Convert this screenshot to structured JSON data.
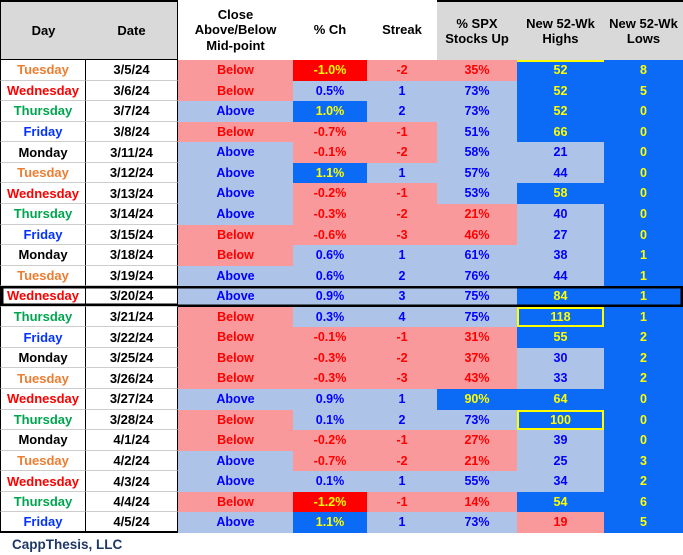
{
  "colors": {
    "header_gray": "#D9D9D9",
    "accent_pink": "#F9999B",
    "accent_light_blue": "#AEC3E8",
    "accent_bright_blue": "#0B6BF7",
    "accent_red": "#FE0000",
    "accent_yellow": "#FFFF00",
    "text_blue": "#0000FF",
    "text_red": "#FE0000",
    "day_monday": "#000000",
    "day_tuesday": "#ED7D31",
    "day_wednesday": "#FE0000",
    "day_thursday": "#00A550",
    "day_friday": "#0432FF",
    "footer_navy": "#1F3864"
  },
  "table": {
    "columns": [
      "Day",
      "Date",
      "Close\nAbove/Below\nMid-point",
      "% Ch",
      "Streak",
      "% SPX\nStocks Up",
      "New 52-Wk\nHighs",
      "New 52-Wk\nLows"
    ],
    "rows": [
      {
        "day": "Tuesday",
        "date": "3/5/24",
        "close": "Below",
        "close_s": "neg",
        "pct": "-1.0%",
        "pct_s": "hotneg",
        "streak": "-2",
        "streak_s": "neg",
        "spx": "35%",
        "spx_s": "neg",
        "highs": "52",
        "highs_s": "hotpos",
        "highs_mark": "topline",
        "lows": "8",
        "lows_s": "hotpos",
        "boxed": false
      },
      {
        "day": "Wednesday",
        "date": "3/6/24",
        "close": "Below",
        "close_s": "neg",
        "pct": "0.5%",
        "pct_s": "pos",
        "streak": "1",
        "streak_s": "pos",
        "spx": "73%",
        "spx_s": "pos",
        "highs": "52",
        "highs_s": "hotpos",
        "highs_mark": null,
        "lows": "5",
        "lows_s": "hotpos",
        "boxed": false
      },
      {
        "day": "Thursday",
        "date": "3/7/24",
        "close": "Above",
        "close_s": "pos",
        "pct": "1.0%",
        "pct_s": "hotpos",
        "streak": "2",
        "streak_s": "pos",
        "spx": "73%",
        "spx_s": "pos",
        "highs": "52",
        "highs_s": "hotpos",
        "highs_mark": null,
        "lows": "0",
        "lows_s": "hotpos",
        "boxed": false
      },
      {
        "day": "Friday",
        "date": "3/8/24",
        "close": "Below",
        "close_s": "neg",
        "pct": "-0.7%",
        "pct_s": "neg",
        "streak": "-1",
        "streak_s": "neg",
        "spx": "51%",
        "spx_s": "pos",
        "highs": "66",
        "highs_s": "hotpos",
        "highs_mark": null,
        "lows": "0",
        "lows_s": "hotpos",
        "boxed": false
      },
      {
        "day": "Monday",
        "date": "3/11/24",
        "close": "Above",
        "close_s": "pos",
        "pct": "-0.1%",
        "pct_s": "neg",
        "streak": "-2",
        "streak_s": "neg",
        "spx": "58%",
        "spx_s": "pos",
        "highs": "21",
        "highs_s": "pos",
        "highs_mark": null,
        "lows": "0",
        "lows_s": "hotpos",
        "boxed": false
      },
      {
        "day": "Tuesday",
        "date": "3/12/24",
        "close": "Above",
        "close_s": "pos",
        "pct": "1.1%",
        "pct_s": "hotpos",
        "streak": "1",
        "streak_s": "pos",
        "spx": "57%",
        "spx_s": "pos",
        "highs": "44",
        "highs_s": "pos",
        "highs_mark": null,
        "lows": "0",
        "lows_s": "hotpos",
        "boxed": false
      },
      {
        "day": "Wednesday",
        "date": "3/13/24",
        "close": "Above",
        "close_s": "pos",
        "pct": "-0.2%",
        "pct_s": "neg",
        "streak": "-1",
        "streak_s": "neg",
        "spx": "53%",
        "spx_s": "pos",
        "highs": "58",
        "highs_s": "hotpos",
        "highs_mark": null,
        "lows": "0",
        "lows_s": "hotpos",
        "boxed": false
      },
      {
        "day": "Thursday",
        "date": "3/14/24",
        "close": "Above",
        "close_s": "pos",
        "pct": "-0.3%",
        "pct_s": "neg",
        "streak": "-2",
        "streak_s": "neg",
        "spx": "21%",
        "spx_s": "neg",
        "highs": "40",
        "highs_s": "pos",
        "highs_mark": null,
        "lows": "0",
        "lows_s": "hotpos",
        "boxed": false
      },
      {
        "day": "Friday",
        "date": "3/15/24",
        "close": "Below",
        "close_s": "neg",
        "pct": "-0.6%",
        "pct_s": "neg",
        "streak": "-3",
        "streak_s": "neg",
        "spx": "46%",
        "spx_s": "neg",
        "highs": "27",
        "highs_s": "pos",
        "highs_mark": null,
        "lows": "0",
        "lows_s": "hotpos",
        "boxed": false
      },
      {
        "day": "Monday",
        "date": "3/18/24",
        "close": "Below",
        "close_s": "neg",
        "pct": "0.6%",
        "pct_s": "pos",
        "streak": "1",
        "streak_s": "pos",
        "spx": "61%",
        "spx_s": "pos",
        "highs": "38",
        "highs_s": "pos",
        "highs_mark": null,
        "lows": "1",
        "lows_s": "hotpos",
        "boxed": false
      },
      {
        "day": "Tuesday",
        "date": "3/19/24",
        "close": "Above",
        "close_s": "pos",
        "pct": "0.6%",
        "pct_s": "pos",
        "streak": "2",
        "streak_s": "pos",
        "spx": "76%",
        "spx_s": "pos",
        "highs": "44",
        "highs_s": "pos",
        "highs_mark": null,
        "lows": "1",
        "lows_s": "hotpos",
        "boxed": false
      },
      {
        "day": "Wednesday",
        "date": "3/20/24",
        "close": "Above",
        "close_s": "pos",
        "pct": "0.9%",
        "pct_s": "pos",
        "streak": "3",
        "streak_s": "pos",
        "spx": "75%",
        "spx_s": "pos",
        "highs": "84",
        "highs_s": "hotpos",
        "highs_mark": null,
        "lows": "1",
        "lows_s": "hotpos",
        "boxed": true
      },
      {
        "day": "Thursday",
        "date": "3/21/24",
        "close": "Below",
        "close_s": "neg",
        "pct": "0.3%",
        "pct_s": "pos",
        "streak": "4",
        "streak_s": "pos",
        "spx": "75%",
        "spx_s": "pos",
        "highs": "118",
        "highs_s": "hotpos",
        "highs_mark": "yellowbox",
        "lows": "1",
        "lows_s": "hotpos",
        "boxed": false
      },
      {
        "day": "Friday",
        "date": "3/22/24",
        "close": "Below",
        "close_s": "neg",
        "pct": "-0.1%",
        "pct_s": "neg",
        "streak": "-1",
        "streak_s": "neg",
        "spx": "31%",
        "spx_s": "neg",
        "highs": "55",
        "highs_s": "hotpos",
        "highs_mark": null,
        "lows": "2",
        "lows_s": "hotpos",
        "boxed": false
      },
      {
        "day": "Monday",
        "date": "3/25/24",
        "close": "Below",
        "close_s": "neg",
        "pct": "-0.3%",
        "pct_s": "neg",
        "streak": "-2",
        "streak_s": "neg",
        "spx": "37%",
        "spx_s": "neg",
        "highs": "30",
        "highs_s": "pos",
        "highs_mark": null,
        "lows": "2",
        "lows_s": "hotpos",
        "boxed": false
      },
      {
        "day": "Tuesday",
        "date": "3/26/24",
        "close": "Below",
        "close_s": "neg",
        "pct": "-0.3%",
        "pct_s": "neg",
        "streak": "-3",
        "streak_s": "neg",
        "spx": "43%",
        "spx_s": "neg",
        "highs": "33",
        "highs_s": "pos",
        "highs_mark": null,
        "lows": "2",
        "lows_s": "hotpos",
        "boxed": false
      },
      {
        "day": "Wednesday",
        "date": "3/27/24",
        "close": "Above",
        "close_s": "pos",
        "pct": "0.9%",
        "pct_s": "pos",
        "streak": "1",
        "streak_s": "pos",
        "spx": "90%",
        "spx_s": "hotpos",
        "highs": "64",
        "highs_s": "hotpos",
        "highs_mark": null,
        "lows": "0",
        "lows_s": "hotpos",
        "boxed": false
      },
      {
        "day": "Thursday",
        "date": "3/28/24",
        "close": "Below",
        "close_s": "neg",
        "pct": "0.1%",
        "pct_s": "pos",
        "streak": "2",
        "streak_s": "pos",
        "spx": "73%",
        "spx_s": "pos",
        "highs": "100",
        "highs_s": "hotpos",
        "highs_mark": "yellowbox",
        "lows": "0",
        "lows_s": "hotpos",
        "boxed": false
      },
      {
        "day": "Monday",
        "date": "4/1/24",
        "close": "Below",
        "close_s": "neg",
        "pct": "-0.2%",
        "pct_s": "neg",
        "streak": "-1",
        "streak_s": "neg",
        "spx": "27%",
        "spx_s": "neg",
        "highs": "39",
        "highs_s": "pos",
        "highs_mark": null,
        "lows": "0",
        "lows_s": "hotpos",
        "boxed": false
      },
      {
        "day": "Tuesday",
        "date": "4/2/24",
        "close": "Above",
        "close_s": "pos",
        "pct": "-0.7%",
        "pct_s": "neg",
        "streak": "-2",
        "streak_s": "neg",
        "spx": "21%",
        "spx_s": "neg",
        "highs": "25",
        "highs_s": "pos",
        "highs_mark": null,
        "lows": "3",
        "lows_s": "hotpos",
        "boxed": false
      },
      {
        "day": "Wednesday",
        "date": "4/3/24",
        "close": "Above",
        "close_s": "pos",
        "pct": "0.1%",
        "pct_s": "pos",
        "streak": "1",
        "streak_s": "pos",
        "spx": "55%",
        "spx_s": "pos",
        "highs": "34",
        "highs_s": "pos",
        "highs_mark": null,
        "lows": "2",
        "lows_s": "hotpos",
        "boxed": false
      },
      {
        "day": "Thursday",
        "date": "4/4/24",
        "close": "Below",
        "close_s": "neg",
        "pct": "-1.2%",
        "pct_s": "hotneg",
        "streak": "-1",
        "streak_s": "neg",
        "spx": "14%",
        "spx_s": "neg",
        "highs": "54",
        "highs_s": "hotpos",
        "highs_mark": null,
        "lows": "6",
        "lows_s": "hotpos",
        "boxed": false
      },
      {
        "day": "Friday",
        "date": "4/5/24",
        "close": "Above",
        "close_s": "pos",
        "pct": "1.1%",
        "pct_s": "hotpos",
        "streak": "1",
        "streak_s": "pos",
        "spx": "73%",
        "spx_s": "pos",
        "highs": "19",
        "highs_s": "neg",
        "highs_mark": null,
        "lows": "5",
        "lows_s": "hotpos",
        "boxed": false
      }
    ]
  },
  "footer": {
    "company": "CappThesis, LLC"
  }
}
